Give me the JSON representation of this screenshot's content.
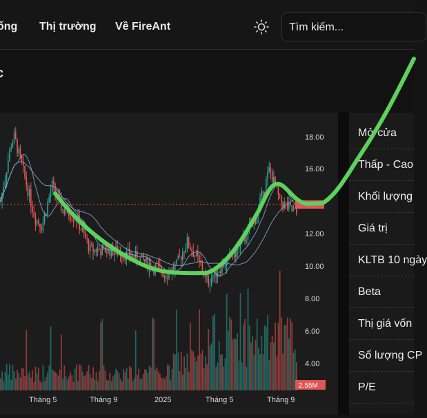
{
  "nav": {
    "items": [
      "ống",
      "Thị trường",
      "Về FireAnt"
    ],
    "theme_icon": "sun-icon",
    "search_placeholder": "Tìm kiếm..."
  },
  "header": {
    "title_fragment": "c"
  },
  "chart_data": {
    "type": "candlestick",
    "y_ticks": [
      "18.00",
      "16.00",
      "12.00",
      "10.00",
      "8.00"
    ],
    "volume_ticks": [
      "6.00",
      "4.00"
    ],
    "volume_label": "2.55M",
    "x_ticks": [
      "Tháng 5",
      "Tháng 9",
      "2025",
      "Tháng 5",
      "Tháng 9"
    ],
    "colors": {
      "up": "#26a69a",
      "down": "#ef5350",
      "ma": "#8fb3d9",
      "annotation": "#5dd15d",
      "last_price_line": "#ef5350"
    }
  },
  "stats": {
    "rows": [
      "Mở cửa",
      "Thấp - Cao",
      "Khối lượng",
      "Giá trị",
      "KLTB 10 ngày",
      "Beta",
      "Thị giá vốn",
      "Số lượng CP",
      "P/E"
    ]
  }
}
